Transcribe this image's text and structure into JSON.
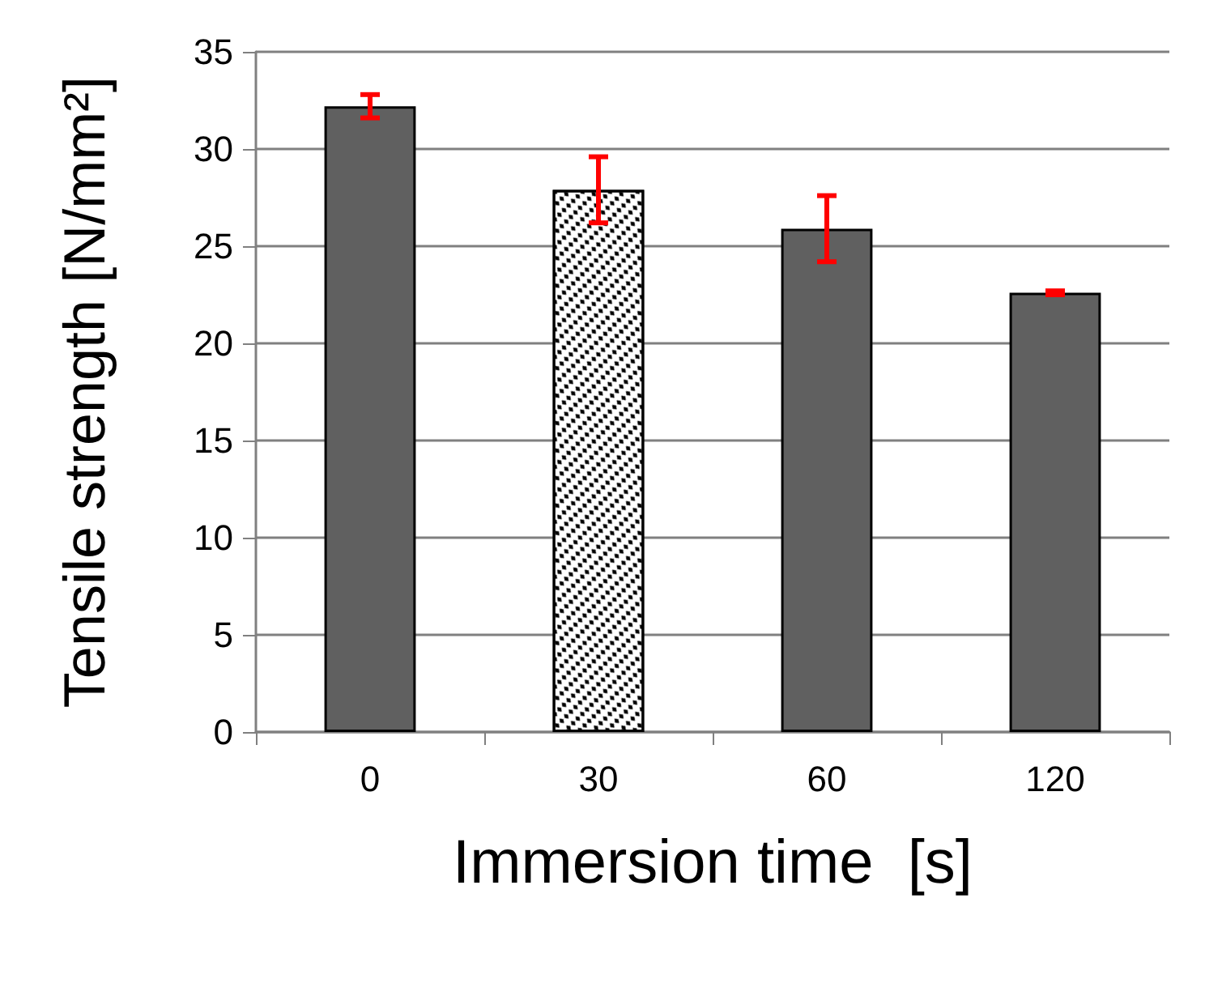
{
  "chart_data": {
    "type": "bar",
    "categories": [
      "0",
      "30",
      "60",
      "120"
    ],
    "values": [
      32.2,
      27.9,
      25.9,
      22.6
    ],
    "colors": [
      "#606060",
      "#ffffff",
      "#606060",
      "#606060"
    ],
    "errors": [
      0.6,
      1.7,
      1.7,
      0.1
    ],
    "xlabel": "Immersion time  [s]",
    "ylabel": "Tensile strength [N/mm²]",
    "ylim": [
      0,
      35
    ],
    "yticks": [
      0,
      5,
      10,
      15,
      20,
      25,
      30,
      35
    ],
    "grid": "y"
  }
}
